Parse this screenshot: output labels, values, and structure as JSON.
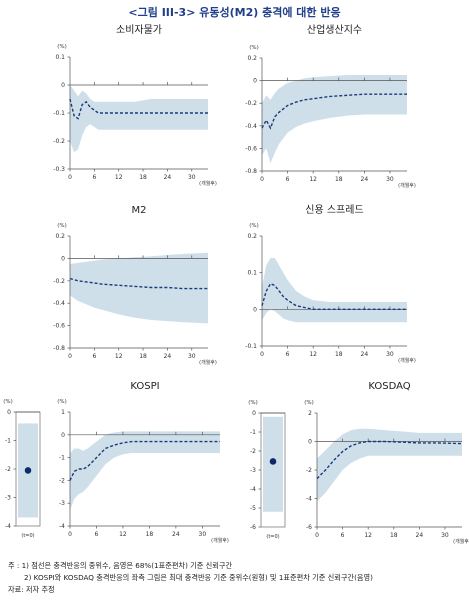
{
  "figure_title": "<그림 III-3> 유동성(M2) 충격에 대한 반응",
  "colors": {
    "band": "#cfdfea",
    "line": "#1a3a7a",
    "dot": "#0e2a6b",
    "axis": "#555555",
    "title": "#1f3f8a"
  },
  "notes": {
    "note1": "주 : 1) 점선은 충격반응의 중위수, 음영은 68%(1표준편차) 기준 신뢰구간",
    "note2": "2) KOSPI와 KOSDAQ 충격반응의 좌측 그림은 최대 충격반응 기준 중위수(원형) 및 1표준편차 기준 신뢰구간(음영)",
    "source": "자료: 저자 추정"
  },
  "chart_data": [
    {
      "id": "consumer-prices",
      "type": "area",
      "title": "소비자물가",
      "ylabel_unit": "(%)",
      "xunit": "(개월후)",
      "ylim": [
        -0.3,
        0.1
      ],
      "yticks": [
        0.1,
        0,
        -0.1,
        -0.2,
        -0.3
      ],
      "ytick_labels": [
        "0.1",
        "0",
        "-0.1",
        "-0.2",
        "-0.3"
      ],
      "xlim": [
        0,
        34
      ],
      "xticks": [
        0,
        6,
        12,
        18,
        24,
        30
      ],
      "x": [
        0,
        1,
        2,
        3,
        4,
        5,
        6,
        7,
        8,
        10,
        12,
        16,
        20,
        24,
        28,
        34
      ],
      "median": [
        -0.05,
        -0.11,
        -0.12,
        -0.07,
        -0.06,
        -0.08,
        -0.09,
        -0.1,
        -0.1,
        -0.1,
        -0.1,
        -0.1,
        -0.1,
        -0.1,
        -0.1,
        -0.1
      ],
      "upper": [
        0.0,
        -0.02,
        -0.04,
        -0.02,
        -0.03,
        -0.05,
        -0.06,
        -0.06,
        -0.06,
        -0.06,
        -0.06,
        -0.06,
        -0.05,
        -0.05,
        -0.05,
        -0.05
      ],
      "lower": [
        -0.2,
        -0.24,
        -0.23,
        -0.18,
        -0.15,
        -0.14,
        -0.15,
        -0.16,
        -0.16,
        -0.16,
        -0.16,
        -0.16,
        -0.16,
        -0.16,
        -0.16,
        -0.16
      ]
    },
    {
      "id": "industrial-production",
      "type": "area",
      "title": "산업생산지수",
      "ylabel_unit": "(%)",
      "xunit": "(개월후)",
      "ylim": [
        -0.8,
        0.2
      ],
      "yticks": [
        0.2,
        0,
        -0.2,
        -0.4,
        -0.6,
        -0.8
      ],
      "ytick_labels": [
        "0.2",
        "0",
        "-0.2",
        "-0.4",
        "-0.6",
        "-0.8"
      ],
      "xlim": [
        0,
        34
      ],
      "xticks": [
        0,
        6,
        12,
        18,
        24,
        30
      ],
      "x": [
        0,
        1,
        2,
        3,
        4,
        6,
        8,
        10,
        12,
        16,
        20,
        24,
        28,
        34
      ],
      "median": [
        -0.42,
        -0.35,
        -0.42,
        -0.32,
        -0.28,
        -0.22,
        -0.19,
        -0.17,
        -0.16,
        -0.14,
        -0.13,
        -0.12,
        -0.12,
        -0.12
      ],
      "upper": [
        -0.2,
        -0.13,
        -0.17,
        -0.11,
        -0.07,
        -0.02,
        0.0,
        0.02,
        0.03,
        0.04,
        0.05,
        0.05,
        0.05,
        0.05
      ],
      "lower": [
        -0.66,
        -0.6,
        -0.73,
        -0.64,
        -0.56,
        -0.46,
        -0.41,
        -0.38,
        -0.36,
        -0.33,
        -0.31,
        -0.3,
        -0.3,
        -0.3
      ]
    },
    {
      "id": "m2",
      "type": "area",
      "title": "M2",
      "ylabel_unit": "(%)",
      "xunit": "(개월후)",
      "ylim": [
        -0.8,
        0.2
      ],
      "yticks": [
        0.2,
        0,
        -0.2,
        -0.4,
        -0.6,
        -0.8
      ],
      "ytick_labels": [
        "0.2",
        "0",
        "-0.2",
        "-0.4",
        "-0.6",
        "-0.8"
      ],
      "xlim": [
        0,
        34
      ],
      "xticks": [
        0,
        6,
        12,
        18,
        24,
        30
      ],
      "x": [
        0,
        2,
        4,
        6,
        8,
        12,
        16,
        20,
        24,
        28,
        34
      ],
      "median": [
        -0.18,
        -0.2,
        -0.21,
        -0.22,
        -0.23,
        -0.24,
        -0.25,
        -0.26,
        -0.26,
        -0.27,
        -0.27
      ],
      "upper": [
        -0.05,
        -0.04,
        -0.03,
        -0.02,
        -0.01,
        0.0,
        0.01,
        0.02,
        0.03,
        0.04,
        0.05
      ],
      "lower": [
        -0.33,
        -0.38,
        -0.41,
        -0.44,
        -0.46,
        -0.5,
        -0.53,
        -0.55,
        -0.56,
        -0.57,
        -0.58
      ]
    },
    {
      "id": "credit-spread",
      "type": "area",
      "title": "신용 스프레드",
      "ylabel_unit": "(%)",
      "xunit": "(개월후)",
      "ylim": [
        -0.1,
        0.2
      ],
      "yticks": [
        0.2,
        0.1,
        0,
        -0.1
      ],
      "ytick_labels": [
        "0.2",
        "0.1",
        "0",
        "-0.1"
      ],
      "xlim": [
        0,
        34
      ],
      "xticks": [
        0,
        6,
        12,
        18,
        24,
        30
      ],
      "x": [
        0,
        1,
        2,
        3,
        4,
        5,
        6,
        8,
        10,
        12,
        16,
        20,
        24,
        28,
        34
      ],
      "median": [
        0.01,
        0.05,
        0.07,
        0.065,
        0.05,
        0.035,
        0.025,
        0.01,
        0.005,
        0.0,
        0.0,
        0.0,
        0.0,
        0.0,
        0.0
      ],
      "upper": [
        0.06,
        0.12,
        0.14,
        0.14,
        0.12,
        0.1,
        0.08,
        0.05,
        0.035,
        0.025,
        0.02,
        0.02,
        0.02,
        0.02,
        0.02
      ],
      "lower": [
        -0.03,
        -0.01,
        0.0,
        -0.005,
        -0.015,
        -0.025,
        -0.03,
        -0.035,
        -0.035,
        -0.035,
        -0.035,
        -0.035,
        -0.035,
        -0.035,
        -0.035
      ]
    },
    {
      "id": "kospi",
      "type": "area",
      "title": "KOSPI",
      "ylabel_unit": "(%)",
      "xunit": "(개월후)",
      "ylim": [
        -4,
        1
      ],
      "yticks": [
        1,
        0,
        -1,
        -2,
        -3,
        -4
      ],
      "ytick_labels": [
        "1",
        "0",
        "-1",
        "-2",
        "-3",
        "-4"
      ],
      "xlim": [
        0,
        34
      ],
      "xticks": [
        0,
        6,
        12,
        18,
        24,
        30
      ],
      "x": [
        0,
        1,
        2,
        3,
        4,
        6,
        8,
        10,
        12,
        14,
        16,
        20,
        24,
        28,
        34
      ],
      "median": [
        -2.0,
        -1.6,
        -1.5,
        -1.5,
        -1.4,
        -1.0,
        -0.6,
        -0.45,
        -0.35,
        -0.3,
        -0.3,
        -0.3,
        -0.3,
        -0.3,
        -0.3
      ],
      "upper": [
        -0.8,
        -0.6,
        -0.6,
        -0.7,
        -0.6,
        -0.3,
        0.0,
        0.1,
        0.15,
        0.15,
        0.15,
        0.15,
        0.15,
        0.15,
        0.15
      ],
      "lower": [
        -3.3,
        -2.8,
        -2.6,
        -2.5,
        -2.3,
        -1.8,
        -1.3,
        -1.0,
        -0.85,
        -0.8,
        -0.8,
        -0.8,
        -0.8,
        -0.8,
        -0.8
      ]
    },
    {
      "id": "kospi-max",
      "type": "scatter",
      "title": "",
      "ylabel_unit": "(%)",
      "xlabel": "(t=0)",
      "ylim": [
        -4,
        0
      ],
      "yticks": [
        0,
        -1,
        -2,
        -3,
        -4
      ],
      "ytick_labels": [
        "0",
        "-1",
        "-2",
        "-3",
        "-4"
      ],
      "median": -2.05,
      "band": [
        -3.7,
        -0.4
      ]
    },
    {
      "id": "kosdaq",
      "type": "area",
      "title": "KOSDAQ",
      "ylabel_unit": "(%)",
      "xunit": "(개월후)",
      "ylim": [
        -6,
        2
      ],
      "yticks": [
        2,
        0,
        -2,
        -4,
        -6
      ],
      "ytick_labels": [
        "2",
        "0",
        "-2",
        "-4",
        "-6"
      ],
      "xlim": [
        0,
        34
      ],
      "xticks": [
        0,
        6,
        12,
        18,
        24,
        30
      ],
      "x": [
        0,
        2,
        4,
        6,
        8,
        10,
        12,
        14,
        16,
        20,
        24,
        28,
        34
      ],
      "median": [
        -2.6,
        -2.0,
        -1.3,
        -0.7,
        -0.3,
        -0.1,
        0.0,
        0.0,
        0.0,
        -0.05,
        -0.1,
        -0.1,
        -0.15
      ],
      "upper": [
        -1.2,
        -0.6,
        0.0,
        0.5,
        0.8,
        0.9,
        0.9,
        0.85,
        0.8,
        0.7,
        0.6,
        0.6,
        0.6
      ],
      "lower": [
        -4.2,
        -3.6,
        -2.8,
        -2.0,
        -1.5,
        -1.2,
        -1.0,
        -1.0,
        -1.0,
        -1.0,
        -1.0,
        -1.0,
        -1.0
      ]
    },
    {
      "id": "kosdaq-max",
      "type": "scatter",
      "title": "",
      "ylabel_unit": "(%)",
      "xlabel": "(t=0)",
      "ylim": [
        -6,
        0
      ],
      "yticks": [
        0,
        -1,
        -2,
        -3,
        -4,
        -5,
        -6
      ],
      "ytick_labels": [
        "0",
        "-1",
        "-2",
        "-3",
        "-4",
        "-5",
        "-6"
      ],
      "median": -2.55,
      "band": [
        -5.2,
        -0.2
      ]
    }
  ]
}
